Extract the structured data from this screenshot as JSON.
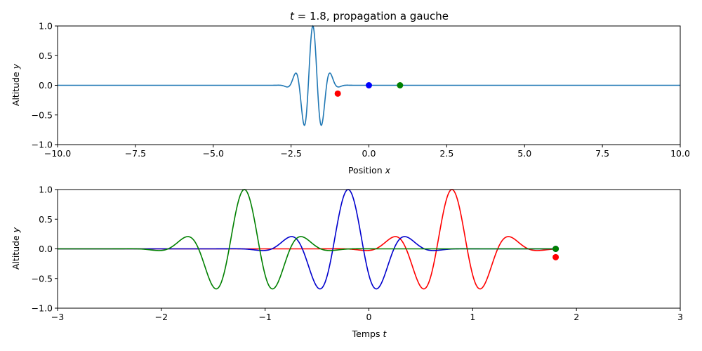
{
  "chart_data": [
    {
      "type": "line",
      "title_math": "t",
      "title_rest": " = 1.8, propagation a gauche",
      "xlabel_text": "Position ",
      "xlabel_var": "x",
      "ylabel_text": "Altitude ",
      "ylabel_var": "y",
      "xlim": [
        -10,
        10
      ],
      "ylim": [
        -1,
        1
      ],
      "xticks": [
        "−10.0",
        "−7.5",
        "−5.0",
        "−2.5",
        "0.0",
        "2.5",
        "5.0",
        "7.5",
        "10.0"
      ],
      "xtick_values": [
        -10,
        -7.5,
        -5,
        -2.5,
        0,
        2.5,
        5,
        7.5,
        10
      ],
      "yticks": [
        "−1.0",
        "−0.5",
        "0.0",
        "0.5",
        "1.0"
      ],
      "ytick_values": [
        -1,
        -0.5,
        0,
        0.5,
        1
      ],
      "wave": {
        "center": -1.8,
        "frequency": 1.7,
        "width": 0.45,
        "color": "#1f77b4"
      },
      "points": [
        {
          "x": -1,
          "y": -0.14,
          "color": "#ff0000"
        },
        {
          "x": 0,
          "y": 0.0,
          "color": "#0000ff"
        },
        {
          "x": 1,
          "y": 0.0,
          "color": "#008000"
        }
      ]
    },
    {
      "type": "line",
      "xlabel_text": "Temps ",
      "xlabel_var": "t",
      "ylabel_text": "Altitude ",
      "ylabel_var": "y",
      "xlim": [
        -3,
        3
      ],
      "ylim": [
        -1,
        1
      ],
      "xticks": [
        "−3",
        "−2",
        "−1",
        "0",
        "1",
        "2",
        "3"
      ],
      "xtick_values": [
        -3,
        -2,
        -1,
        0,
        1,
        2,
        3
      ],
      "yticks": [
        "−1.0",
        "−0.5",
        "0.0",
        "0.5",
        "1.0"
      ],
      "ytick_values": [
        -1,
        -0.5,
        0,
        0.5,
        1
      ],
      "t_end": 1.8,
      "series": [
        {
          "position": -1,
          "center": 0.8,
          "color": "#ff0000"
        },
        {
          "position": 0,
          "center": -0.2,
          "color": "#0000cd"
        },
        {
          "position": 1,
          "center": -1.2,
          "color": "#008000"
        }
      ],
      "end_points": [
        {
          "t": 1.8,
          "y": -0.14,
          "color": "#ff0000"
        },
        {
          "t": 1.8,
          "y": 0.0,
          "color": "#0000ff"
        },
        {
          "t": 1.8,
          "y": 0.0,
          "color": "#008000"
        }
      ]
    }
  ]
}
